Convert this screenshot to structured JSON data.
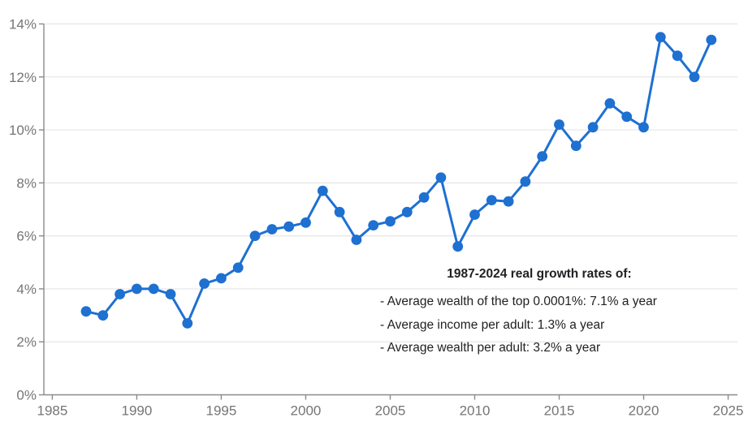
{
  "chart_data": {
    "type": "line",
    "title": "",
    "xlabel": "",
    "ylabel": "",
    "x": [
      1987,
      1988,
      1989,
      1990,
      1991,
      1992,
      1993,
      1994,
      1995,
      1996,
      1997,
      1998,
      1999,
      2000,
      2001,
      2002,
      2003,
      2004,
      2005,
      2006,
      2007,
      2008,
      2009,
      2010,
      2011,
      2012,
      2013,
      2014,
      2015,
      2016,
      2017,
      2018,
      2019,
      2020,
      2021,
      2022,
      2023,
      2024
    ],
    "values": [
      3.15,
      3.0,
      3.8,
      4.0,
      4.0,
      3.8,
      2.7,
      4.2,
      4.4,
      4.8,
      6.0,
      6.25,
      6.35,
      6.5,
      7.7,
      6.9,
      5.85,
      6.4,
      6.55,
      6.9,
      7.45,
      8.2,
      5.6,
      6.8,
      7.35,
      7.3,
      8.05,
      9.0,
      10.2,
      9.4,
      10.1,
      11.0,
      10.5,
      10.1,
      13.5,
      12.8,
      12.0,
      13.4
    ],
    "series_name": "Average wealth of the top 0.0001% (real growth rate)",
    "xlim": [
      1984.5,
      2025.55
    ],
    "ylim": [
      0,
      14
    ],
    "xticks": [
      1985,
      1990,
      1995,
      2000,
      2005,
      2010,
      2015,
      2020,
      2025
    ],
    "yticks": [
      0,
      2,
      4,
      6,
      8,
      10,
      12,
      14
    ],
    "ytick_suffix": "%",
    "grid": "horizontal",
    "legend": "none",
    "marker": "circle",
    "annotation": {
      "title": "1987-2024 real growth rates of:",
      "lines": [
        "- Average wealth of the top 0.0001%: 7.1% a year",
        "- Average income per adult: 1.3% a year",
        "- Average wealth per adult: 3.2% a year"
      ]
    },
    "colors": {
      "line": "#1e70d1",
      "marker": "#1e70d1",
      "axis": "#8a8a8a",
      "grid": "#e6e6e6",
      "tick_label": "#757575",
      "annotation_text": "#202124",
      "background": "#ffffff"
    }
  }
}
